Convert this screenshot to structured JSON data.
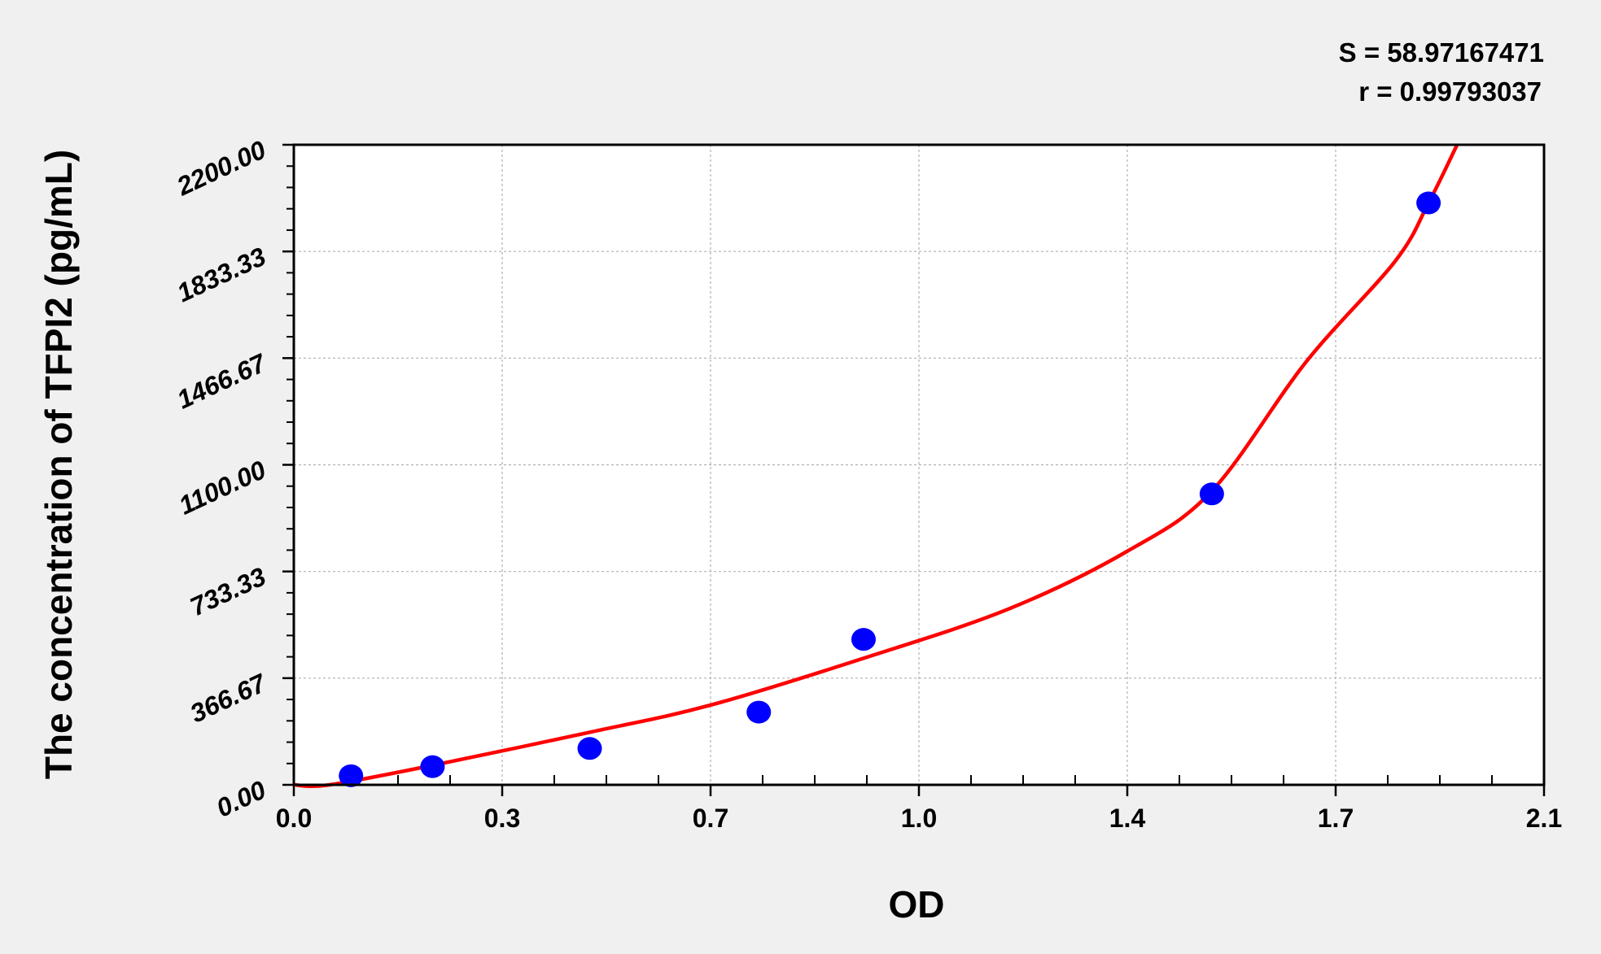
{
  "chart_data": {
    "type": "scatter",
    "title": "",
    "xlabel": "OD",
    "ylabel": "The concentration of TFPI2 (pg/mL)",
    "xlim": [
      0,
      2.1
    ],
    "ylim": [
      0,
      2200
    ],
    "x_ticks": [
      0,
      0.35,
      0.7,
      1.05,
      1.4,
      1.75,
      2.1
    ],
    "x_tick_labels": [
      "0.0",
      "0.3",
      "0.7",
      "1.0",
      "1.4",
      "1.7",
      "2.1"
    ],
    "y_ticks": [
      0,
      366.67,
      733.33,
      1100,
      1466.67,
      1833.33,
      2200
    ],
    "y_tick_labels": [
      "0.00",
      "366.67",
      "733.33",
      "1100.00",
      "1466.67",
      "1833.33",
      "2200.00"
    ],
    "grid": true,
    "stats": {
      "s": "S = 58.97167471",
      "r": "r = 0.99793037"
    },
    "points": {
      "x": [
        0.096,
        0.233,
        0.497,
        0.781,
        0.957,
        1.542,
        1.906
      ],
      "y": [
        31.25,
        62.5,
        125,
        250,
        500,
        1000,
        2000
      ],
      "color": "#0000ff"
    },
    "fit_curve": {
      "x": [
        0.0,
        0.06,
        0.233,
        0.5,
        0.7,
        0.957,
        1.2,
        1.4,
        1.542,
        1.7,
        1.85,
        1.906,
        1.954
      ],
      "y": [
        0,
        0,
        67,
        182,
        274,
        435,
        604,
        803,
        1010,
        1453,
        1800,
        2000,
        2200
      ],
      "color": "#ff0000"
    }
  }
}
